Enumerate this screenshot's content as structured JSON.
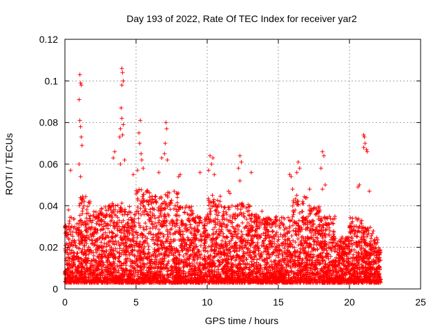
{
  "chart_data": {
    "type": "scatter",
    "title": "Day 193 of 2022, Rate Of TEC Index for receiver yar2",
    "xlabel": "GPS time / hours",
    "ylabel": "ROTI / TECUs",
    "xlim": [
      0,
      25
    ],
    "ylim": [
      0,
      0.12
    ],
    "x_ticks": [
      "0",
      "5",
      "10",
      "15",
      "20",
      "25"
    ],
    "y_ticks": [
      "0",
      "0.02",
      "0.04",
      "0.06",
      "0.08",
      "0.1",
      "0.12"
    ],
    "x_tick_values": [
      0,
      5,
      10,
      15,
      20,
      25
    ],
    "y_tick_values": [
      0,
      0.02,
      0.04,
      0.06,
      0.08,
      0.1,
      0.12
    ],
    "grid": true,
    "marker": "+",
    "color": "#ff0000",
    "series": [
      {
        "points": [
          [
            0.25,
            0.038
          ],
          [
            0.4,
            0.057
          ],
          [
            1.05,
            0.103
          ],
          [
            1.1,
            0.099
          ],
          [
            1.15,
            0.098
          ],
          [
            1.0,
            0.091
          ],
          [
            1.05,
            0.081
          ],
          [
            1.1,
            0.078
          ],
          [
            1.15,
            0.073
          ],
          [
            1.2,
            0.069
          ],
          [
            1.0,
            0.06
          ],
          [
            1.1,
            0.054
          ],
          [
            4.0,
            0.106
          ],
          [
            4.05,
            0.104
          ],
          [
            4.1,
            0.1
          ],
          [
            4.0,
            0.098
          ],
          [
            3.95,
            0.087
          ],
          [
            4.0,
            0.082
          ],
          [
            4.1,
            0.079
          ],
          [
            3.9,
            0.077
          ],
          [
            4.05,
            0.074
          ],
          [
            3.85,
            0.073
          ],
          [
            3.5,
            0.066
          ],
          [
            3.4,
            0.063
          ],
          [
            4.2,
            0.062
          ],
          [
            3.9,
            0.06
          ],
          [
            5.3,
            0.081
          ],
          [
            5.2,
            0.075
          ],
          [
            5.25,
            0.07
          ],
          [
            5.35,
            0.065
          ],
          [
            5.4,
            0.062
          ],
          [
            5.5,
            0.058
          ],
          [
            5.1,
            0.057
          ],
          [
            4.8,
            0.055
          ],
          [
            7.1,
            0.08
          ],
          [
            7.15,
            0.077
          ],
          [
            7.05,
            0.07
          ],
          [
            7.0,
            0.065
          ],
          [
            6.8,
            0.063
          ],
          [
            7.2,
            0.062
          ],
          [
            6.6,
            0.056
          ],
          [
            8.1,
            0.055
          ],
          [
            8.0,
            0.054
          ],
          [
            9.5,
            0.056
          ],
          [
            10.2,
            0.064
          ],
          [
            10.4,
            0.063
          ],
          [
            10.1,
            0.057
          ],
          [
            10.5,
            0.055
          ],
          [
            10.3,
            0.06
          ],
          [
            12.3,
            0.064
          ],
          [
            12.4,
            0.061
          ],
          [
            12.2,
            0.058
          ],
          [
            12.3,
            0.052
          ],
          [
            13.1,
            0.056
          ],
          [
            11.5,
            0.047
          ],
          [
            11.6,
            0.046
          ],
          [
            16.4,
            0.061
          ],
          [
            16.5,
            0.058
          ],
          [
            16.3,
            0.056
          ],
          [
            15.8,
            0.055
          ],
          [
            15.9,
            0.054
          ],
          [
            16.0,
            0.048
          ],
          [
            17.2,
            0.048
          ],
          [
            18.1,
            0.066
          ],
          [
            18.2,
            0.064
          ],
          [
            18.0,
            0.058
          ],
          [
            18.3,
            0.05
          ],
          [
            18.1,
            0.048
          ],
          [
            21.0,
            0.074
          ],
          [
            21.05,
            0.073
          ],
          [
            21.1,
            0.07
          ],
          [
            21.0,
            0.068
          ],
          [
            21.2,
            0.067
          ],
          [
            21.25,
            0.066
          ],
          [
            20.7,
            0.05
          ],
          [
            20.6,
            0.049
          ],
          [
            21.4,
            0.047
          ]
        ]
      }
    ],
    "bulk_density": [
      {
        "x": [
          0,
          1
        ],
        "ymax": 0.035
      },
      {
        "x": [
          1,
          2
        ],
        "ymax": 0.045
      },
      {
        "x": [
          2,
          3
        ],
        "ymax": 0.04
      },
      {
        "x": [
          3,
          4
        ],
        "ymax": 0.042
      },
      {
        "x": [
          4,
          5
        ],
        "ymax": 0.04
      },
      {
        "x": [
          5,
          6
        ],
        "ymax": 0.048
      },
      {
        "x": [
          6,
          7
        ],
        "ymax": 0.045
      },
      {
        "x": [
          7,
          8
        ],
        "ymax": 0.047
      },
      {
        "x": [
          8,
          9
        ],
        "ymax": 0.04
      },
      {
        "x": [
          9,
          10
        ],
        "ymax": 0.035
      },
      {
        "x": [
          10,
          11
        ],
        "ymax": 0.045
      },
      {
        "x": [
          11,
          12
        ],
        "ymax": 0.04
      },
      {
        "x": [
          12,
          13
        ],
        "ymax": 0.042
      },
      {
        "x": [
          13,
          14
        ],
        "ymax": 0.038
      },
      {
        "x": [
          14,
          15
        ],
        "ymax": 0.035
      },
      {
        "x": [
          15,
          16
        ],
        "ymax": 0.035
      },
      {
        "x": [
          16,
          17
        ],
        "ymax": 0.045
      },
      {
        "x": [
          17,
          18
        ],
        "ymax": 0.04
      },
      {
        "x": [
          18,
          19
        ],
        "ymax": 0.035
      },
      {
        "x": [
          19,
          20
        ],
        "ymax": 0.025
      },
      {
        "x": [
          20,
          21
        ],
        "ymax": 0.035
      },
      {
        "x": [
          21,
          22
        ],
        "ymax": 0.03
      },
      {
        "x": [
          22,
          22.2
        ],
        "ymax": 0.02
      }
    ],
    "bulk_ymin": 0.003
  }
}
